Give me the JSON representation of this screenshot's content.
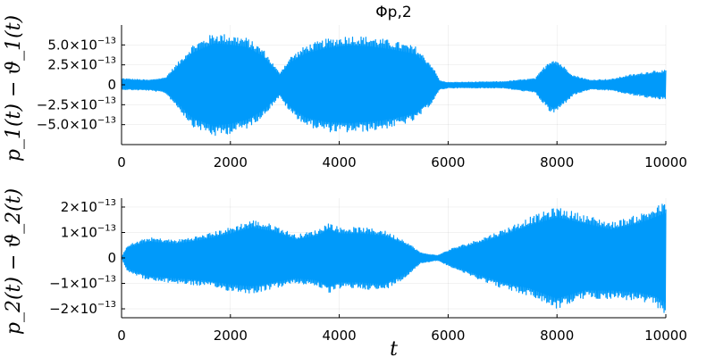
{
  "chart_data": [
    {
      "type": "area",
      "title": "Φp,2",
      "ylabel": "p_1(t) − ϑ_1(t)",
      "xlabel": "",
      "xlim": [
        0,
        10000
      ],
      "ylim": [
        -7.5e-13,
        7.5e-13
      ],
      "grid": true,
      "legend": "none",
      "color": "#009AFA",
      "x_ticks": [
        0,
        2000,
        4000,
        6000,
        8000,
        10000
      ],
      "x_tick_labels": [
        "0",
        "2000",
        "4000",
        "6000",
        "8000",
        "10000"
      ],
      "y_ticks": [
        5e-13,
        2.5e-13,
        0,
        -2.5e-13,
        -5e-13
      ],
      "y_tick_labels": [
        {
          "base": "5.0×10",
          "exp": "−13"
        },
        {
          "base": "2.5×10",
          "exp": "−13"
        },
        {
          "base": "0",
          "exp": ""
        },
        {
          "base": "−2.5×10",
          "exp": "−13"
        },
        {
          "base": "−5.0×10",
          "exp": "−13"
        }
      ],
      "envelope": {
        "x": [
          0,
          500,
          800,
          1000,
          1300,
          1700,
          2000,
          2300,
          2600,
          2900,
          3100,
          3400,
          3800,
          4200,
          4600,
          5000,
          5400,
          5700,
          5850,
          6000,
          7000,
          7600,
          7850,
          7950,
          8050,
          8300,
          8600,
          9000,
          9300,
          9500,
          9800,
          10000
        ],
        "upper": [
          8e-14,
          6e-14,
          9e-14,
          2.5e-13,
          5e-13,
          6.5e-13,
          6.3e-13,
          5.9e-13,
          4.5e-13,
          1.5e-13,
          3.5e-13,
          5e-13,
          5.8e-13,
          6.2e-13,
          6e-13,
          5.5e-13,
          4.8e-13,
          2.5e-13,
          5e-14,
          3e-14,
          4e-14,
          8e-14,
          3e-13,
          3.3e-13,
          2.8e-13,
          1.2e-13,
          6e-14,
          7e-14,
          1.2e-13,
          1.4e-13,
          1.8e-13,
          1.8e-13
        ],
        "lower": [
          -6e-14,
          -7e-14,
          -1e-13,
          -2.6e-13,
          -5.2e-13,
          -6.5e-13,
          -6.1e-13,
          -5.5e-13,
          -4e-13,
          -1.5e-13,
          -3.5e-13,
          -5.2e-13,
          -5.9e-13,
          -6e-13,
          -5.8e-13,
          -5.3e-13,
          -4.5e-13,
          -2.3e-13,
          -6e-14,
          -4e-14,
          -4e-14,
          -1e-13,
          -3.3e-13,
          -3.6e-13,
          -3e-13,
          -1.3e-13,
          -6e-14,
          -7e-14,
          -1.2e-13,
          -1.4e-13,
          -1.8e-13,
          -1.8e-13
        ]
      }
    },
    {
      "type": "area",
      "title": "",
      "ylabel": "p_2(t) − ϑ_2(t)",
      "xlabel": "t",
      "xlim": [
        0,
        10000
      ],
      "ylim": [
        -2.35e-13,
        2.35e-13
      ],
      "grid": true,
      "legend": "none",
      "color": "#009AFA",
      "x_ticks": [
        0,
        2000,
        4000,
        6000,
        8000,
        10000
      ],
      "x_tick_labels": [
        "0",
        "2000",
        "4000",
        "6000",
        "8000",
        "10000"
      ],
      "y_ticks": [
        2e-13,
        1e-13,
        0,
        -1e-13,
        -2e-13
      ],
      "y_tick_labels": [
        {
          "base": "2×10",
          "exp": "−13"
        },
        {
          "base": "1×10",
          "exp": "−13"
        },
        {
          "base": "0",
          "exp": ""
        },
        {
          "base": "−1×10",
          "exp": "−13"
        },
        {
          "base": "−2×10",
          "exp": "−13"
        }
      ],
      "envelope": {
        "x": [
          0,
          100,
          500,
          1000,
          1500,
          2000,
          2400,
          2800,
          3200,
          3600,
          3800,
          4000,
          4400,
          4800,
          5200,
          5500,
          5800,
          6100,
          6400,
          7000,
          7500,
          8000,
          8500,
          9000,
          9500,
          9800,
          10000
        ],
        "upper": [
          0.0,
          5e-14,
          8e-14,
          7e-14,
          9e-14,
          1.2e-13,
          1.5e-13,
          1.3e-13,
          9e-14,
          1.1e-13,
          1.4e-13,
          1.2e-13,
          1.2e-13,
          1.1e-13,
          7e-14,
          2e-14,
          1e-14,
          4e-14,
          6e-14,
          1.1e-13,
          1.6e-13,
          2e-13,
          1.7e-13,
          1.4e-13,
          1.7e-13,
          2e-13,
          2.2e-13
        ],
        "lower": [
          0.0,
          -5e-14,
          -9e-14,
          -1e-13,
          -1.1e-13,
          -1.3e-13,
          -1.4e-13,
          -1.2e-13,
          -1e-13,
          -1.1e-13,
          -1.4e-13,
          -1.2e-13,
          -1.2e-13,
          -1.3e-13,
          -8e-14,
          -2e-14,
          -1e-14,
          -4e-14,
          -7e-14,
          -1.2e-13,
          -1.5e-13,
          -2e-13,
          -1.6e-13,
          -1.6e-13,
          -1.7e-13,
          -1.9e-13,
          -2.2e-13
        ]
      }
    }
  ]
}
